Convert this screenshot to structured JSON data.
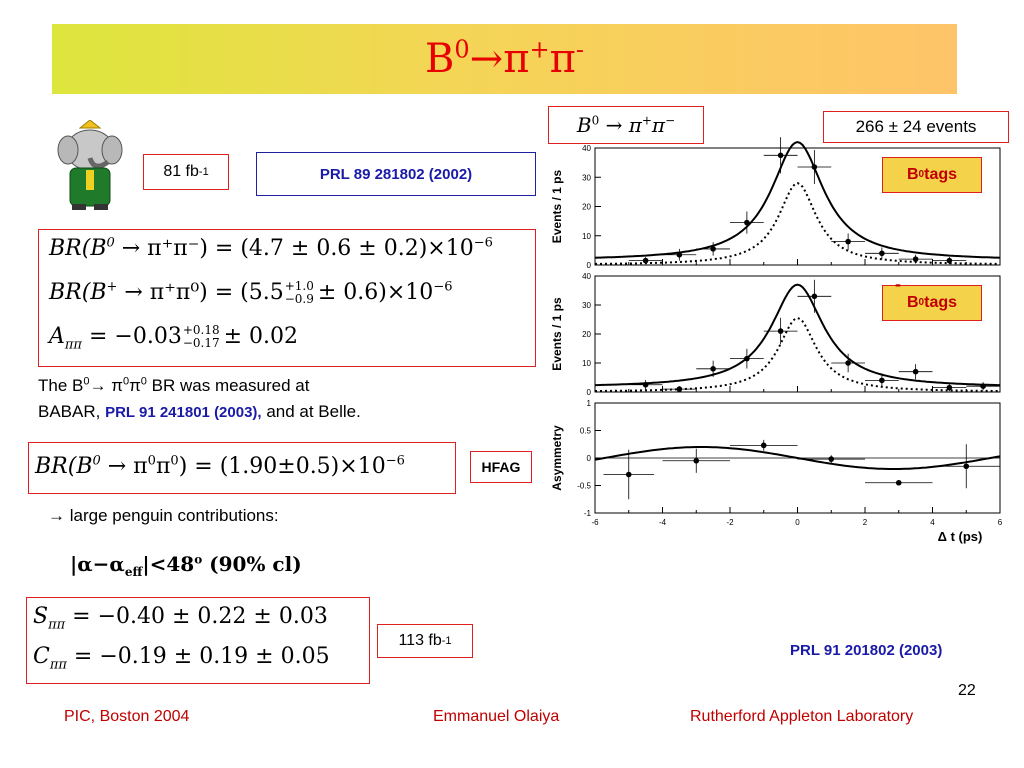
{
  "title": {
    "base": "B",
    "sup0": "0",
    "arrow": "→",
    "pi1": "π",
    "plus": "+",
    "pi2": "π",
    "minus": "-"
  },
  "lumi_81": {
    "value": "81 fb",
    "exp": "-1"
  },
  "ref_prl89": "PRL 89 281802 (2002)",
  "formulas": {
    "br_pipi": {
      "lhs": "BR(B",
      "sup": "0",
      "decay": " → π⁺π⁻) = (4.7 ± 0.6 ± 0.2)×10",
      "exp": "−6"
    },
    "br_pipi0": {
      "lhs": "BR(B",
      "sup": "+",
      "decay": " → π⁺π⁰) = (5.5",
      "err_up": "+1.0",
      "err_dn": "−0.9",
      "rest": "± 0.6)×10",
      "exp": "−6"
    },
    "acp": {
      "lhs": "A",
      "sub": "ππ",
      "mid": " = −0.03",
      "err_up": "+0.18",
      "err_dn": "−0.17",
      "rest": "± 0.02"
    }
  },
  "text_pi0pi0": {
    "line1a": "The B",
    "line1sup": "0",
    "line1b": "→ π",
    "sup2": "0",
    "pi": "π",
    "sup3": "0",
    "line1c": " BR was measured at",
    "line2a": "BABAR, ",
    "line2ref": "PRL 91 241801 (2003),",
    "line2b": " and at Belle."
  },
  "formula_pi0pi0": {
    "lhs": "BR(B",
    "sup": "0",
    "decay": " → π",
    "s1": "0",
    "pi": "π",
    "s2": "0",
    "rhs": ") = (1.90±0.5)×10",
    "exp": "−6"
  },
  "hfag_label": "HFAG",
  "penguin": {
    "arrow": "→",
    "text": "large penguin contributions:"
  },
  "alpha_limit": {
    "open": "|α−α",
    "sub": "eff",
    "rest": "|<48",
    "deg": "o",
    "cl": " (90% cl)"
  },
  "formulas_sc": {
    "s": {
      "lhs": "S",
      "sub": "ππ",
      "rhs": " = −0.40 ± 0.22 ± 0.03"
    },
    "c": {
      "lhs": "C",
      "sub": "ππ",
      "rhs": " = −0.19 ± 0.19 ± 0.05"
    }
  },
  "lumi_113": {
    "value": "113 fb",
    "exp": "-1"
  },
  "ref_prl91": "PRL 91 201802 (2003)",
  "page_number": "22",
  "footer": {
    "left": "PIC, Boston 2004",
    "center": "Emmanuel Olaiya",
    "right": "Rutherford Appleton Laboratory"
  },
  "plot_label": {
    "base": "B",
    "sup": "0",
    "arrow": "→",
    "pi": "π",
    "plus": "+",
    "minus": "−"
  },
  "events_label": "266 ± 24 events",
  "tag_b0": {
    "text": "B",
    "sup": "0",
    "rest": " tags"
  },
  "tag_b0bar": {
    "bar": "-",
    "text": "B",
    "sup": "0",
    "rest": " tags"
  },
  "colors": {
    "title_grad_start": "#dde63c",
    "title_grad_end": "#ffc469",
    "title_text": "#e60000",
    "ref_blue": "#1a1aa8",
    "footer_red": "#c00000",
    "tag_box": "#f4d24a",
    "tag_text": "#c00000",
    "box_border": "#e02020"
  },
  "chart_data": [
    {
      "type": "scatter",
      "panel": "B0 tags",
      "ylabel": "Events / 1 ps",
      "xlim": [
        -6,
        6
      ],
      "ylim": [
        0,
        40
      ],
      "yticks": [
        "0",
        "10",
        "20",
        "30",
        "40"
      ],
      "points": [
        {
          "x": -4.5,
          "y": 1.5,
          "yerr": 1.2
        },
        {
          "x": -3.5,
          "y": 3.5,
          "yerr": 2.0
        },
        {
          "x": -2.5,
          "y": 5.5,
          "yerr": 2.3
        },
        {
          "x": -1.5,
          "y": 14.5,
          "yerr": 3.8
        },
        {
          "x": -0.5,
          "y": 37.5,
          "yerr": 6.2
        },
        {
          "x": 0.5,
          "y": 33.5,
          "yerr": 5.8
        },
        {
          "x": 1.5,
          "y": 8.0,
          "yerr": 2.8
        },
        {
          "x": 2.5,
          "y": 4.0,
          "yerr": 2.0
        },
        {
          "x": 3.5,
          "y": 2.0,
          "yerr": 1.5
        },
        {
          "x": 4.5,
          "y": 1.5,
          "yerr": 1.2
        }
      ],
      "fit_total": {
        "amplitude": 42,
        "baseline": 1.5
      },
      "fit_signal": {
        "amplitude": 28
      }
    },
    {
      "type": "scatter",
      "panel": "B0bar tags",
      "ylabel": "Events / 1 ps",
      "xlim": [
        -6,
        6
      ],
      "ylim": [
        0,
        40
      ],
      "yticks": [
        "0",
        "10",
        "20",
        "30",
        "40"
      ],
      "points": [
        {
          "x": -4.5,
          "y": 2.5,
          "yerr": 1.6
        },
        {
          "x": -3.5,
          "y": 1.0,
          "yerr": 1.0
        },
        {
          "x": -2.5,
          "y": 8.0,
          "yerr": 2.8
        },
        {
          "x": -1.5,
          "y": 11.5,
          "yerr": 3.4
        },
        {
          "x": -0.5,
          "y": 21.0,
          "yerr": 4.6
        },
        {
          "x": 0.5,
          "y": 33.0,
          "yerr": 5.7
        },
        {
          "x": 1.5,
          "y": 10.0,
          "yerr": 3.2
        },
        {
          "x": 2.5,
          "y": 4.0,
          "yerr": 2.0
        },
        {
          "x": 3.5,
          "y": 7.0,
          "yerr": 2.6
        },
        {
          "x": 4.5,
          "y": 1.5,
          "yerr": 1.2
        },
        {
          "x": 5.5,
          "y": 2.0,
          "yerr": 1.4
        }
      ],
      "fit_total": {
        "amplitude": 37,
        "baseline": 1.5
      },
      "fit_signal": {
        "amplitude": 25.5
      }
    },
    {
      "type": "scatter",
      "panel": "asymmetry",
      "ylabel": "Asymmetry",
      "xlabel": "Δ t (ps)",
      "xlim": [
        -6,
        6
      ],
      "ylim": [
        -1,
        1
      ],
      "xticks": [
        "-6",
        "-4",
        "-2",
        "0",
        "2",
        "4",
        "6"
      ],
      "yticks": [
        "-1",
        "-0.5",
        "0",
        "0.5",
        "1"
      ],
      "points": [
        {
          "x": -5.0,
          "y": -0.3,
          "yerr": 0.45,
          "xerr": 0.75
        },
        {
          "x": -3.0,
          "y": -0.05,
          "yerr": 0.22,
          "xerr": 1.0
        },
        {
          "x": -1.0,
          "y": 0.23,
          "yerr": 0.1,
          "xerr": 1.0
        },
        {
          "x": 1.0,
          "y": -0.02,
          "yerr": 0.07,
          "xerr": 1.0
        },
        {
          "x": 3.0,
          "y": -0.45,
          "yerr": 0.0,
          "xerr": 1.0
        },
        {
          "x": 5.0,
          "y": -0.15,
          "yerr": 0.4,
          "xerr": 1.0
        }
      ]
    }
  ]
}
